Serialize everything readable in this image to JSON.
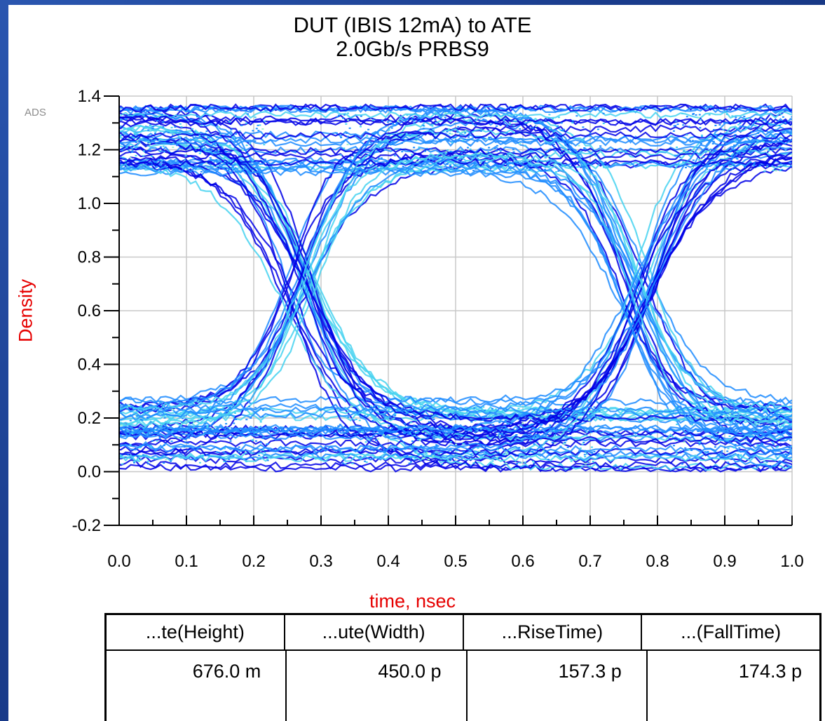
{
  "chart_data": {
    "type": "eye_diagram",
    "title": "DUT (IBIS 12mA) to ATE",
    "subtitle": "2.0Gb/s PRBS9",
    "software_label": "ADS",
    "xlabel": "time, nsec",
    "ylabel": "Density",
    "xlim": [
      0.0,
      1.0
    ],
    "ylim": [
      -0.2,
      1.4
    ],
    "x_ticks": [
      "0.0",
      "0.1",
      "0.2",
      "0.3",
      "0.4",
      "0.5",
      "0.6",
      "0.7",
      "0.8",
      "0.9",
      "1.0"
    ],
    "y_ticks": [
      "-0.2",
      "0.0",
      "0.2",
      "0.4",
      "0.6",
      "0.8",
      "1.0",
      "1.2",
      "1.4"
    ],
    "x_tick_values": [
      0.0,
      0.1,
      0.2,
      0.3,
      0.4,
      0.5,
      0.6,
      0.7,
      0.8,
      0.9,
      1.0
    ],
    "y_tick_values": [
      -0.2,
      0.0,
      0.2,
      0.4,
      0.6,
      0.8,
      1.0,
      1.2,
      1.4
    ],
    "grid": true,
    "bit_period_ns": 0.5,
    "crossing_times_ns": [
      0.27,
      0.77
    ],
    "crossing_level": 0.68,
    "logic_high_level": 1.23,
    "logic_low_level": 0.14,
    "high_band": [
      1.05,
      1.38
    ],
    "low_band": [
      -0.03,
      0.32
    ],
    "colors": {
      "background": "#1d3f8f",
      "trace_dark": "#0000e6",
      "trace_mid": "#1e8cff",
      "trace_light": "#46d2f0",
      "trace_hot": "#a0f5c8",
      "axis_title": "#e60000",
      "grid": "#c8c8c8"
    }
  },
  "measurements": {
    "headers": [
      "...te(Height)",
      "...ute(Width)",
      "...RiseTime)",
      "...(FallTime)"
    ],
    "values": [
      "676.0 m",
      "450.0 p",
      "157.3 p",
      "174.3 p"
    ]
  }
}
